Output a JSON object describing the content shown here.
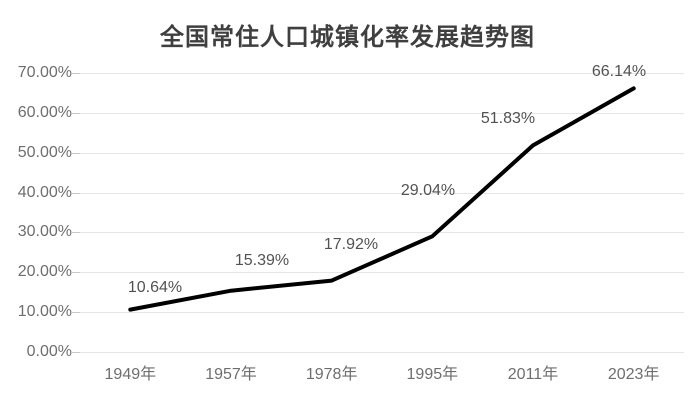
{
  "title": "全国常住人口城镇化率发展趋势图",
  "chart_data": {
    "type": "line",
    "title": "全国常住人口城镇化率发展趋势图",
    "categories": [
      "1949年",
      "1957年",
      "1978年",
      "1995年",
      "2011年",
      "2023年"
    ],
    "values": [
      10.64,
      15.39,
      17.92,
      29.04,
      51.83,
      66.14
    ],
    "point_labels": [
      "10.64%",
      "15.39%",
      "17.92%",
      "29.04%",
      "51.83%",
      "66.14%"
    ],
    "y_ticks": [
      0,
      10,
      20,
      30,
      40,
      50,
      60,
      70
    ],
    "y_tick_labels": [
      "0.00%",
      "10.00%",
      "20.00%",
      "30.00%",
      "40.00%",
      "50.00%",
      "60.00%",
      "70.00%"
    ],
    "xlabel": "",
    "ylabel": "",
    "ylim": [
      0,
      70
    ],
    "grid": true,
    "legend": false
  },
  "colors": {
    "line": "#000000",
    "gridline": "#e6e6e6",
    "tick": "#c9c9c9",
    "title_text": "#3f3f3f",
    "axis_text": "#6e6e6e",
    "data_label_text": "#525252",
    "background": "#ffffff"
  }
}
